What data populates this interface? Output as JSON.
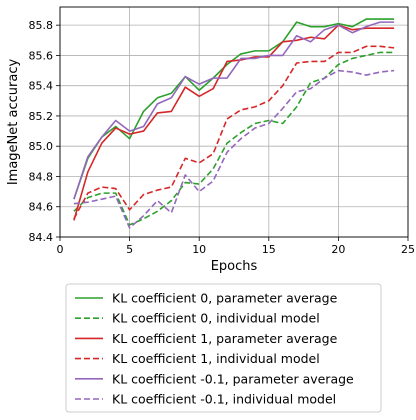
{
  "chart_data": {
    "type": "line",
    "title": "",
    "xlabel": "Epochs",
    "ylabel": "ImageNet accuracy",
    "xlim": [
      0,
      25
    ],
    "ylim": [
      84.4,
      85.92
    ],
    "xticks": [
      0,
      5,
      10,
      15,
      20,
      25
    ],
    "yticks": [
      84.4,
      84.6,
      84.8,
      85.0,
      85.2,
      85.4,
      85.6,
      85.8
    ],
    "ytick_labels": [
      "84.4",
      "84.6",
      "84.8",
      "85.0",
      "85.2",
      "85.4",
      "85.6",
      "85.8"
    ],
    "grid": true,
    "legend_position": "below",
    "x": [
      1,
      2,
      3,
      4,
      5,
      6,
      7,
      8,
      9,
      10,
      11,
      12,
      13,
      14,
      15,
      16,
      17,
      18,
      19,
      20,
      21,
      22,
      23,
      24
    ],
    "series": [
      {
        "name": "KL coefficient 0, parameter average",
        "color": "#2ca02c",
        "dash": "solid",
        "values": [
          84.65,
          84.92,
          85.06,
          85.13,
          85.05,
          85.23,
          85.32,
          85.35,
          85.46,
          85.37,
          85.45,
          85.54,
          85.61,
          85.63,
          85.63,
          85.69,
          85.82,
          85.79,
          85.79,
          85.81,
          85.79,
          85.84,
          85.84,
          85.84
        ]
      },
      {
        "name": "KL coefficient 0, individual model",
        "color": "#2ca02c",
        "dash": "dashed",
        "values": [
          84.57,
          84.66,
          84.69,
          84.69,
          84.48,
          84.52,
          84.57,
          84.64,
          84.76,
          84.75,
          84.85,
          85.02,
          85.09,
          85.15,
          85.17,
          85.15,
          85.26,
          85.42,
          85.45,
          85.54,
          85.58,
          85.6,
          85.62,
          85.62
        ]
      },
      {
        "name": "KL coefficient 1, parameter average",
        "color": "#d62728",
        "dash": "solid",
        "values": [
          84.51,
          84.83,
          85.02,
          85.12,
          85.08,
          85.1,
          85.22,
          85.23,
          85.39,
          85.33,
          85.38,
          85.56,
          85.57,
          85.59,
          85.59,
          85.69,
          85.7,
          85.72,
          85.71,
          85.8,
          85.77,
          85.78,
          85.78,
          85.78
        ]
      },
      {
        "name": "KL coefficient 1, individual model",
        "color": "#d62728",
        "dash": "dashed",
        "values": [
          84.52,
          84.69,
          84.73,
          84.72,
          84.58,
          84.68,
          84.71,
          84.73,
          84.92,
          84.89,
          84.95,
          85.18,
          85.24,
          85.26,
          85.3,
          85.4,
          85.55,
          85.56,
          85.56,
          85.62,
          85.62,
          85.66,
          85.66,
          85.65
        ]
      },
      {
        "name": "KL coefficient -0.1, parameter average",
        "color": "#9467bd",
        "dash": "solid",
        "values": [
          84.65,
          84.93,
          85.06,
          85.17,
          85.1,
          85.13,
          85.28,
          85.32,
          85.46,
          85.41,
          85.45,
          85.45,
          85.58,
          85.58,
          85.6,
          85.6,
          85.73,
          85.69,
          85.77,
          85.8,
          85.75,
          85.79,
          85.82,
          85.82
        ]
      },
      {
        "name": "KL coefficient -0.1, individual model",
        "color": "#9467bd",
        "dash": "dashed",
        "values": [
          84.62,
          84.63,
          84.65,
          84.67,
          84.46,
          84.54,
          84.64,
          84.56,
          84.81,
          84.7,
          84.77,
          84.96,
          85.05,
          85.12,
          85.15,
          85.25,
          85.36,
          85.38,
          85.45,
          85.5,
          85.49,
          85.47,
          85.49,
          85.5
        ]
      }
    ]
  }
}
